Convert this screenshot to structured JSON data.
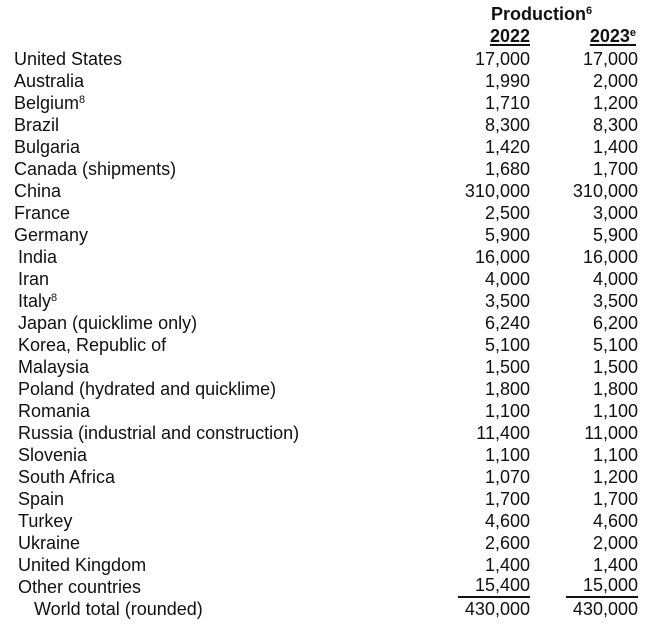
{
  "header": {
    "title": "Production",
    "title_footnote": "6",
    "columns": [
      {
        "label": "2022",
        "footnote": ""
      },
      {
        "label": "2023",
        "footnote": "e"
      }
    ]
  },
  "rows": [
    {
      "country": "United States",
      "footnote": "",
      "y2022": "17,000",
      "y2023": "17,000"
    },
    {
      "country": "Australia",
      "footnote": "",
      "y2022": "1,990",
      "y2023": "2,000"
    },
    {
      "country": "Belgium",
      "footnote": "8",
      "y2022": "1,710",
      "y2023": "1,200"
    },
    {
      "country": "Brazil",
      "footnote": "",
      "y2022": "8,300",
      "y2023": "8,300"
    },
    {
      "country": "Bulgaria",
      "footnote": "",
      "y2022": "1,420",
      "y2023": "1,400"
    },
    {
      "country": "Canada (shipments)",
      "footnote": "",
      "y2022": "1,680",
      "y2023": "1,700"
    },
    {
      "country": "China",
      "footnote": "",
      "y2022": "310,000",
      "y2023": "310,000"
    },
    {
      "country": "France",
      "footnote": "",
      "y2022": "2,500",
      "y2023": "3,000"
    },
    {
      "country": "Germany",
      "footnote": "",
      "y2022": "5,900",
      "y2023": "5,900"
    },
    {
      "country": "India",
      "footnote": "",
      "y2022": "16,000",
      "y2023": "16,000"
    },
    {
      "country": "Iran",
      "footnote": "",
      "y2022": "4,000",
      "y2023": "4,000"
    },
    {
      "country": "Italy",
      "footnote": "8",
      "y2022": "3,500",
      "y2023": "3,500"
    },
    {
      "country": "Japan (quicklime only)",
      "footnote": "",
      "y2022": "6,240",
      "y2023": "6,200"
    },
    {
      "country": "Korea, Republic of",
      "footnote": "",
      "y2022": "5,100",
      "y2023": "5,100"
    },
    {
      "country": "Malaysia",
      "footnote": "",
      "y2022": "1,500",
      "y2023": "1,500"
    },
    {
      "country": "Poland (hydrated and quicklime)",
      "footnote": "",
      "y2022": "1,800",
      "y2023": "1,800"
    },
    {
      "country": "Romania",
      "footnote": "",
      "y2022": "1,100",
      "y2023": "1,100"
    },
    {
      "country": "Russia (industrial and construction)",
      "footnote": "",
      "y2022": "11,400",
      "y2023": "11,000"
    },
    {
      "country": "Slovenia",
      "footnote": "",
      "y2022": "1,100",
      "y2023": "1,100"
    },
    {
      "country": "South Africa",
      "footnote": "",
      "y2022": "1,070",
      "y2023": "1,200"
    },
    {
      "country": "Spain",
      "footnote": "",
      "y2022": "1,700",
      "y2023": "1,700"
    },
    {
      "country": "Turkey",
      "footnote": "",
      "y2022": "4,600",
      "y2023": "4,600"
    },
    {
      "country": "Ukraine",
      "footnote": "",
      "y2022": "2,600",
      "y2023": "2,000"
    },
    {
      "country": "United Kingdom",
      "footnote": "",
      "y2022": "1,400",
      "y2023": "1,400"
    },
    {
      "country": "Other countries",
      "footnote": "",
      "y2022": "15,400",
      "y2023": "15,000"
    }
  ],
  "total": {
    "label": "World total (rounded)",
    "y2022": "430,000",
    "y2023": "430,000"
  }
}
